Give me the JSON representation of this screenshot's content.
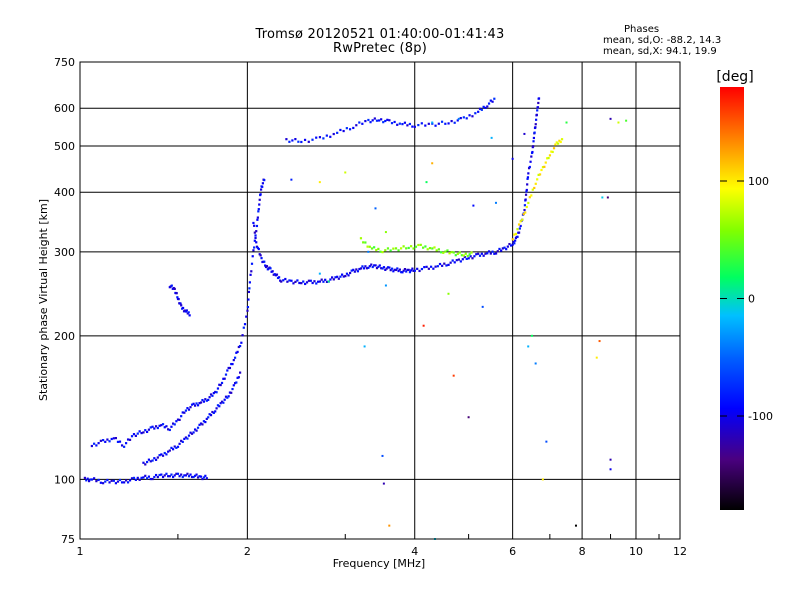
{
  "title_line1": "Tromsø 20120521 01:40:00-01:41:43",
  "title_line2": "RwPretec (8p)",
  "phases": {
    "heading": "Phases",
    "o_mode": "mean, sd,O: -88.2, 14.3",
    "x_mode": "mean, sd,X:  94.1, 19.9"
  },
  "colorbar": {
    "label": "[deg]",
    "ticks": [
      100,
      0,
      -100
    ],
    "tick_labels": [
      "100",
      "0",
      "-100"
    ],
    "range": [
      -180,
      180
    ]
  },
  "chart_data": {
    "type": "scatter",
    "xlabel": "Frequency [MHz]",
    "ylabel": "Stationary phase Virtual Height [km]",
    "x_scale": "log",
    "y_scale": "log",
    "xlim": [
      1,
      12
    ],
    "ylim": [
      75,
      750
    ],
    "xticks": [
      1,
      2,
      4,
      6,
      8,
      10,
      12
    ],
    "xtick_labels": [
      "1",
      "2",
      "4",
      "6",
      "8",
      "10",
      "12"
    ],
    "yticks": [
      75,
      100,
      200,
      300,
      400,
      500,
      600,
      750
    ],
    "ytick_labels": [
      "75",
      "100",
      "200",
      "300",
      "400",
      "500",
      "600",
      "750"
    ],
    "grid": true,
    "traces": [
      {
        "name": "",
        "color_deg": -95,
        "points": [
          [
            1.02,
            100
          ],
          [
            1.05,
            100
          ],
          [
            1.1,
            99
          ],
          [
            1.15,
            99
          ],
          [
            1.2,
            99
          ],
          [
            1.25,
            100
          ],
          [
            1.3,
            101
          ],
          [
            1.35,
            101
          ],
          [
            1.4,
            102
          ],
          [
            1.45,
            102
          ],
          [
            1.5,
            102
          ],
          [
            1.55,
            102
          ],
          [
            1.6,
            102
          ],
          [
            1.65,
            101
          ],
          [
            1.7,
            101
          ]
        ]
      },
      {
        "name": "",
        "color_deg": -95,
        "points": [
          [
            1.05,
            118
          ],
          [
            1.1,
            120
          ],
          [
            1.15,
            122
          ],
          [
            1.2,
            118
          ],
          [
            1.25,
            124
          ],
          [
            1.3,
            126
          ],
          [
            1.35,
            128
          ],
          [
            1.4,
            130
          ],
          [
            1.45,
            128
          ],
          [
            1.5,
            133
          ],
          [
            1.55,
            140
          ],
          [
            1.6,
            143
          ],
          [
            1.65,
            145
          ],
          [
            1.7,
            148
          ],
          [
            1.75,
            152
          ],
          [
            1.8,
            160
          ],
          [
            1.85,
            170
          ],
          [
            1.9,
            180
          ],
          [
            1.95,
            195
          ],
          [
            2.0,
            225
          ],
          [
            2.02,
            260
          ],
          [
            2.05,
            300
          ],
          [
            2.08,
            340
          ],
          [
            2.1,
            380
          ],
          [
            2.12,
            410
          ],
          [
            2.15,
            430
          ]
        ]
      },
      {
        "name": "",
        "color_deg": -95,
        "points": [
          [
            1.3,
            108
          ],
          [
            1.35,
            110
          ],
          [
            1.4,
            112
          ],
          [
            1.45,
            115
          ],
          [
            1.5,
            118
          ],
          [
            1.55,
            122
          ],
          [
            1.6,
            126
          ],
          [
            1.65,
            130
          ],
          [
            1.7,
            135
          ],
          [
            1.75,
            140
          ],
          [
            1.8,
            145
          ],
          [
            1.85,
            150
          ],
          [
            1.9,
            158
          ],
          [
            1.95,
            170
          ]
        ]
      },
      {
        "name": "",
        "color_deg": -100,
        "points": [
          [
            1.45,
            255
          ],
          [
            1.48,
            250
          ],
          [
            1.5,
            240
          ],
          [
            1.52,
            230
          ],
          [
            1.55,
            225
          ],
          [
            1.58,
            222
          ]
        ]
      },
      {
        "name": "",
        "color_deg": -98,
        "points": [
          [
            2.05,
            345
          ],
          [
            2.08,
            310
          ],
          [
            2.12,
            290
          ],
          [
            2.16,
            280
          ],
          [
            2.2,
            275
          ],
          [
            2.25,
            268
          ],
          [
            2.3,
            262
          ],
          [
            2.4,
            260
          ],
          [
            2.5,
            259
          ],
          [
            2.6,
            259
          ],
          [
            2.7,
            260
          ],
          [
            2.8,
            262
          ],
          [
            2.9,
            265
          ],
          [
            3.0,
            268
          ],
          [
            3.1,
            273
          ],
          [
            3.2,
            277
          ],
          [
            3.3,
            280
          ],
          [
            3.4,
            280
          ],
          [
            3.5,
            278
          ],
          [
            3.6,
            276
          ],
          [
            3.7,
            275
          ],
          [
            3.8,
            274
          ],
          [
            3.9,
            274
          ],
          [
            4.0,
            275
          ],
          [
            4.2,
            277
          ],
          [
            4.4,
            280
          ],
          [
            4.6,
            284
          ],
          [
            4.8,
            288
          ],
          [
            5.0,
            292
          ],
          [
            5.2,
            295
          ],
          [
            5.4,
            298
          ],
          [
            5.6,
            300
          ],
          [
            5.8,
            305
          ],
          [
            6.0,
            312
          ],
          [
            6.1,
            320
          ],
          [
            6.2,
            340
          ],
          [
            6.3,
            370
          ],
          [
            6.35,
            400
          ],
          [
            6.4,
            440
          ],
          [
            6.5,
            480
          ],
          [
            6.55,
            520
          ],
          [
            6.6,
            560
          ],
          [
            6.65,
            600
          ],
          [
            6.7,
            640
          ]
        ]
      },
      {
        "name": "",
        "color_deg": 55,
        "points": [
          [
            3.2,
            318
          ],
          [
            3.35,
            305
          ],
          [
            3.5,
            302
          ],
          [
            3.7,
            304
          ],
          [
            3.9,
            307
          ],
          [
            4.1,
            308
          ],
          [
            4.3,
            305
          ],
          [
            4.5,
            301
          ],
          [
            4.7,
            298
          ],
          [
            4.9,
            296
          ],
          [
            5.1,
            297
          ]
        ]
      },
      {
        "name": "",
        "color_deg": 95,
        "points": [
          [
            6.0,
            320
          ],
          [
            6.2,
            345
          ],
          [
            6.4,
            380
          ],
          [
            6.6,
            420
          ],
          [
            6.8,
            450
          ],
          [
            7.0,
            480
          ],
          [
            7.2,
            505
          ],
          [
            7.4,
            520
          ]
        ]
      },
      {
        "name": "",
        "color_deg": -90,
        "points": [
          [
            2.35,
            515
          ],
          [
            2.5,
            512
          ],
          [
            2.7,
            518
          ],
          [
            2.9,
            533
          ],
          [
            3.1,
            550
          ],
          [
            3.3,
            565
          ],
          [
            3.45,
            568
          ],
          [
            3.6,
            562
          ],
          [
            3.8,
            556
          ],
          [
            4.0,
            553
          ],
          [
            4.3,
            555
          ],
          [
            4.6,
            560
          ],
          [
            4.9,
            570
          ],
          [
            5.2,
            590
          ],
          [
            5.4,
            610
          ],
          [
            5.6,
            630
          ]
        ]
      }
    ],
    "scatter_points": [
      [
        3.5,
        112,
        -60
      ],
      [
        3.52,
        98,
        -120
      ],
      [
        3.6,
        80,
        130
      ],
      [
        3.25,
        190,
        -20
      ],
      [
        3.3,
        300,
        -40
      ],
      [
        3.55,
        255,
        -30
      ],
      [
        3.4,
        370,
        -50
      ],
      [
        3.55,
        330,
        60
      ],
      [
        4.2,
        420,
        20
      ],
      [
        4.3,
        460,
        120
      ],
      [
        4.15,
        210,
        170
      ],
      [
        4.7,
        165,
        160
      ],
      [
        5.0,
        135,
        -140
      ],
      [
        5.3,
        230,
        -60
      ],
      [
        5.5,
        520,
        -20
      ],
      [
        5.6,
        380,
        -40
      ],
      [
        6.4,
        190,
        -20
      ],
      [
        6.6,
        175,
        -40
      ],
      [
        6.5,
        200,
        20
      ],
      [
        6.8,
        100,
        100
      ],
      [
        6.9,
        120,
        -60
      ],
      [
        7.5,
        560,
        30
      ],
      [
        7.8,
        80,
        -180
      ],
      [
        8.5,
        180,
        100
      ],
      [
        8.6,
        195,
        150
      ],
      [
        9.0,
        105,
        -100
      ],
      [
        9.0,
        110,
        -120
      ],
      [
        8.7,
        390,
        -10
      ],
      [
        8.9,
        390,
        -140
      ],
      [
        9.3,
        560,
        80
      ],
      [
        9.6,
        565,
        40
      ],
      [
        9.0,
        570,
        -120
      ],
      [
        4.35,
        75,
        -10
      ],
      [
        3.0,
        440,
        80
      ],
      [
        2.7,
        420,
        100
      ],
      [
        2.4,
        425,
        -80
      ],
      [
        4.3,
        560,
        -20
      ],
      [
        4.8,
        570,
        -40
      ],
      [
        2.8,
        260,
        10
      ],
      [
        2.7,
        270,
        -20
      ],
      [
        4.6,
        245,
        60
      ],
      [
        5.1,
        375,
        -90
      ],
      [
        6.0,
        470,
        -100
      ],
      [
        6.3,
        530,
        -110
      ]
    ]
  }
}
